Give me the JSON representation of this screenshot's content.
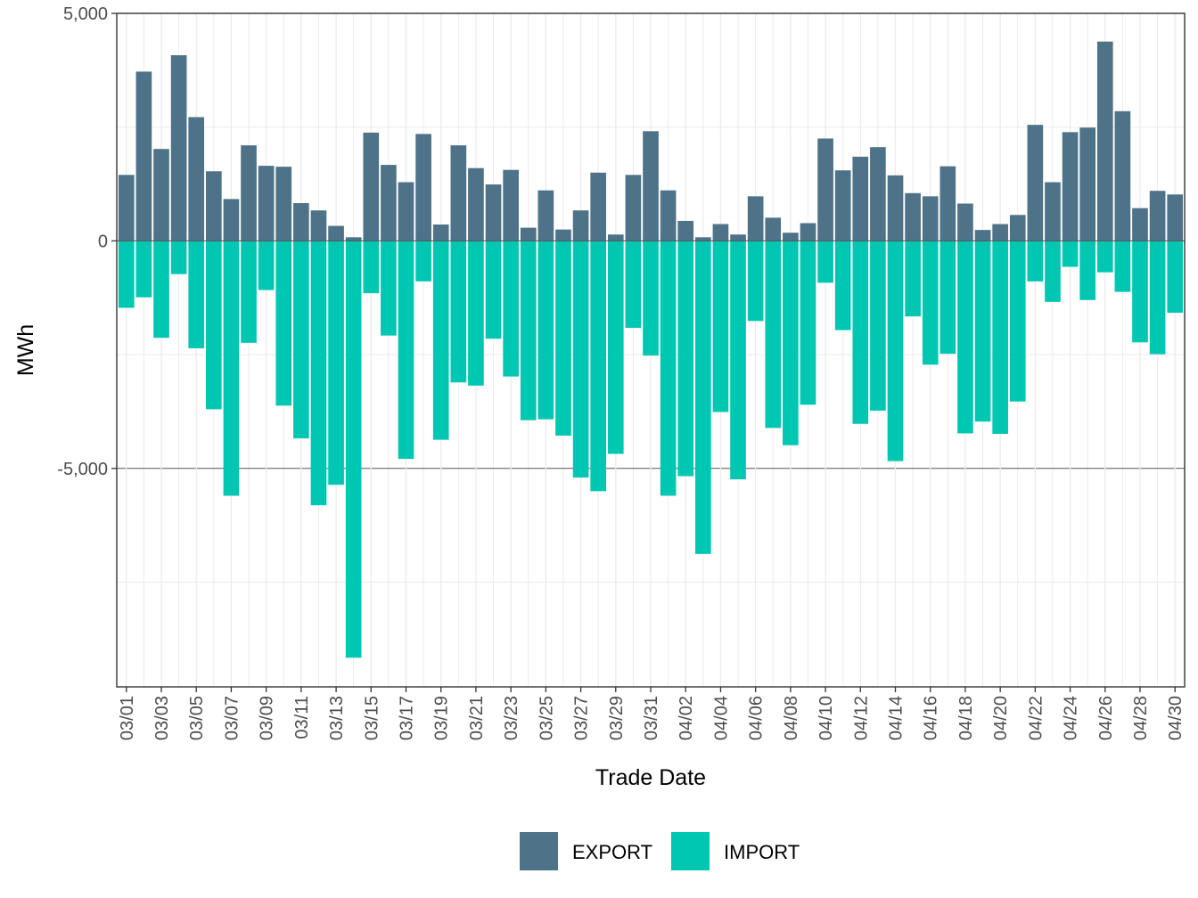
{
  "chart_data": {
    "type": "bar",
    "title": "",
    "xlabel": "Trade Date",
    "ylabel": "MWh",
    "ylim": [
      -9800,
      5000
    ],
    "yticks": [
      5000,
      0,
      -5000
    ],
    "ytick_labels": [
      "5,000",
      "0",
      "-5,000"
    ],
    "grid": true,
    "legend_position": "bottom",
    "categories": [
      "03/01",
      "03/02",
      "03/03",
      "03/04",
      "03/05",
      "03/06",
      "03/07",
      "03/08",
      "03/09",
      "03/10",
      "03/11",
      "03/12",
      "03/13",
      "03/14",
      "03/15",
      "03/16",
      "03/17",
      "03/18",
      "03/19",
      "03/20",
      "03/21",
      "03/22",
      "03/23",
      "03/24",
      "03/25",
      "03/26",
      "03/27",
      "03/28",
      "03/29",
      "03/30",
      "03/31",
      "04/01",
      "04/02",
      "04/03",
      "04/04",
      "04/05",
      "04/06",
      "04/07",
      "04/08",
      "04/09",
      "04/10",
      "04/11",
      "04/12",
      "04/13",
      "04/14",
      "04/15",
      "04/16",
      "04/17",
      "04/18",
      "04/19",
      "04/20",
      "04/21",
      "04/22",
      "04/23",
      "04/24",
      "04/25",
      "04/26",
      "04/27",
      "04/28",
      "04/29",
      "04/30"
    ],
    "xtick_labels": [
      "03/01",
      "03/03",
      "03/05",
      "03/07",
      "03/09",
      "03/11",
      "03/13",
      "03/15",
      "03/17",
      "03/19",
      "03/21",
      "03/23",
      "03/25",
      "03/27",
      "03/29",
      "03/31",
      "04/02",
      "04/04",
      "04/06",
      "04/08",
      "04/10",
      "04/12",
      "04/14",
      "04/16",
      "04/18",
      "04/20",
      "04/22",
      "04/24",
      "04/26",
      "04/28",
      "04/30"
    ],
    "series": [
      {
        "name": "EXPORT",
        "color": "#4e7287",
        "values": [
          1450,
          3720,
          2020,
          4080,
          2720,
          1530,
          920,
          2100,
          1650,
          1630,
          830,
          670,
          330,
          80,
          2380,
          1670,
          1290,
          2350,
          360,
          2100,
          1600,
          1240,
          1560,
          290,
          1110,
          250,
          670,
          1500,
          140,
          1450,
          2410,
          1110,
          440,
          80,
          370,
          140,
          980,
          510,
          180,
          390,
          2250,
          1550,
          1850,
          2060,
          1440,
          1050,
          980,
          1640,
          820,
          240,
          370,
          570,
          2550,
          1290,
          2390,
          2490,
          4380,
          2850,
          720,
          1100,
          1020
        ]
      },
      {
        "name": "IMPORT",
        "color": "#00c7b1",
        "values": [
          -1470,
          -1240,
          -2130,
          -730,
          -2360,
          -3700,
          -5600,
          -2240,
          -1080,
          -3620,
          -4340,
          -5810,
          -5360,
          -9160,
          -1150,
          -2080,
          -4790,
          -890,
          -4370,
          -3110,
          -3180,
          -2150,
          -2980,
          -3940,
          -3920,
          -4280,
          -5200,
          -5500,
          -4680,
          -1910,
          -2520,
          -5600,
          -5170,
          -6880,
          -3760,
          -5240,
          -1760,
          -4110,
          -4490,
          -3600,
          -920,
          -1960,
          -4020,
          -3730,
          -4840,
          -1660,
          -2720,
          -2480,
          -4230,
          -3970,
          -4240,
          -3530,
          -890,
          -1340,
          -570,
          -1300,
          -690,
          -1120,
          -2230,
          -2490,
          -1580
        ]
      }
    ]
  },
  "legend": {
    "items": [
      {
        "label": "EXPORT",
        "color": "#4e7287"
      },
      {
        "label": "IMPORT",
        "color": "#00c7b1"
      }
    ]
  }
}
